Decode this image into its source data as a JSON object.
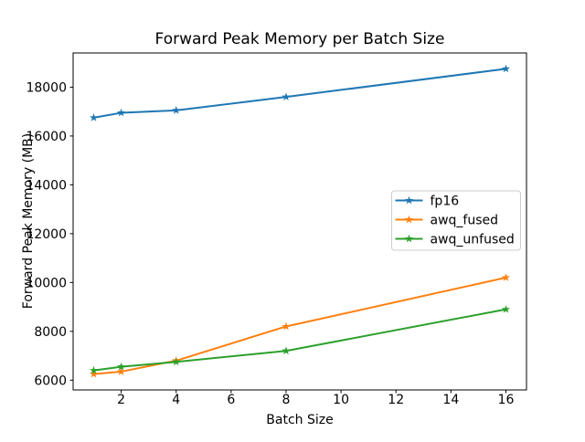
{
  "chart_data": {
    "type": "line",
    "title": "Forward Peak Memory per Batch Size",
    "xlabel": "Batch Size",
    "ylabel": "Forward Peak Memory (MB)",
    "x": [
      1,
      2,
      4,
      8,
      16
    ],
    "series": [
      {
        "name": "fp16",
        "color": "#1f77b4",
        "marker": "star",
        "values": [
          16750,
          16950,
          17050,
          17600,
          18750
        ]
      },
      {
        "name": "awq_fused",
        "color": "#ff7f0e",
        "marker": "star",
        "values": [
          6250,
          6350,
          6800,
          8200,
          10200
        ]
      },
      {
        "name": "awq_unfused",
        "color": "#2ca02c",
        "marker": "star",
        "values": [
          6400,
          6550,
          6750,
          7200,
          8900
        ]
      }
    ],
    "xlim": [
      0.25,
      16.75
    ],
    "ylim": [
      5600,
      19400
    ],
    "xticks": [
      2,
      4,
      6,
      8,
      10,
      12,
      14,
      16
    ],
    "yticks": [
      6000,
      8000,
      10000,
      12000,
      14000,
      16000,
      18000
    ],
    "grid": false,
    "legend_position": "center-right",
    "spine_color": "#000000",
    "legend_border_color": "#cccccc",
    "background_color": "#ffffff"
  }
}
